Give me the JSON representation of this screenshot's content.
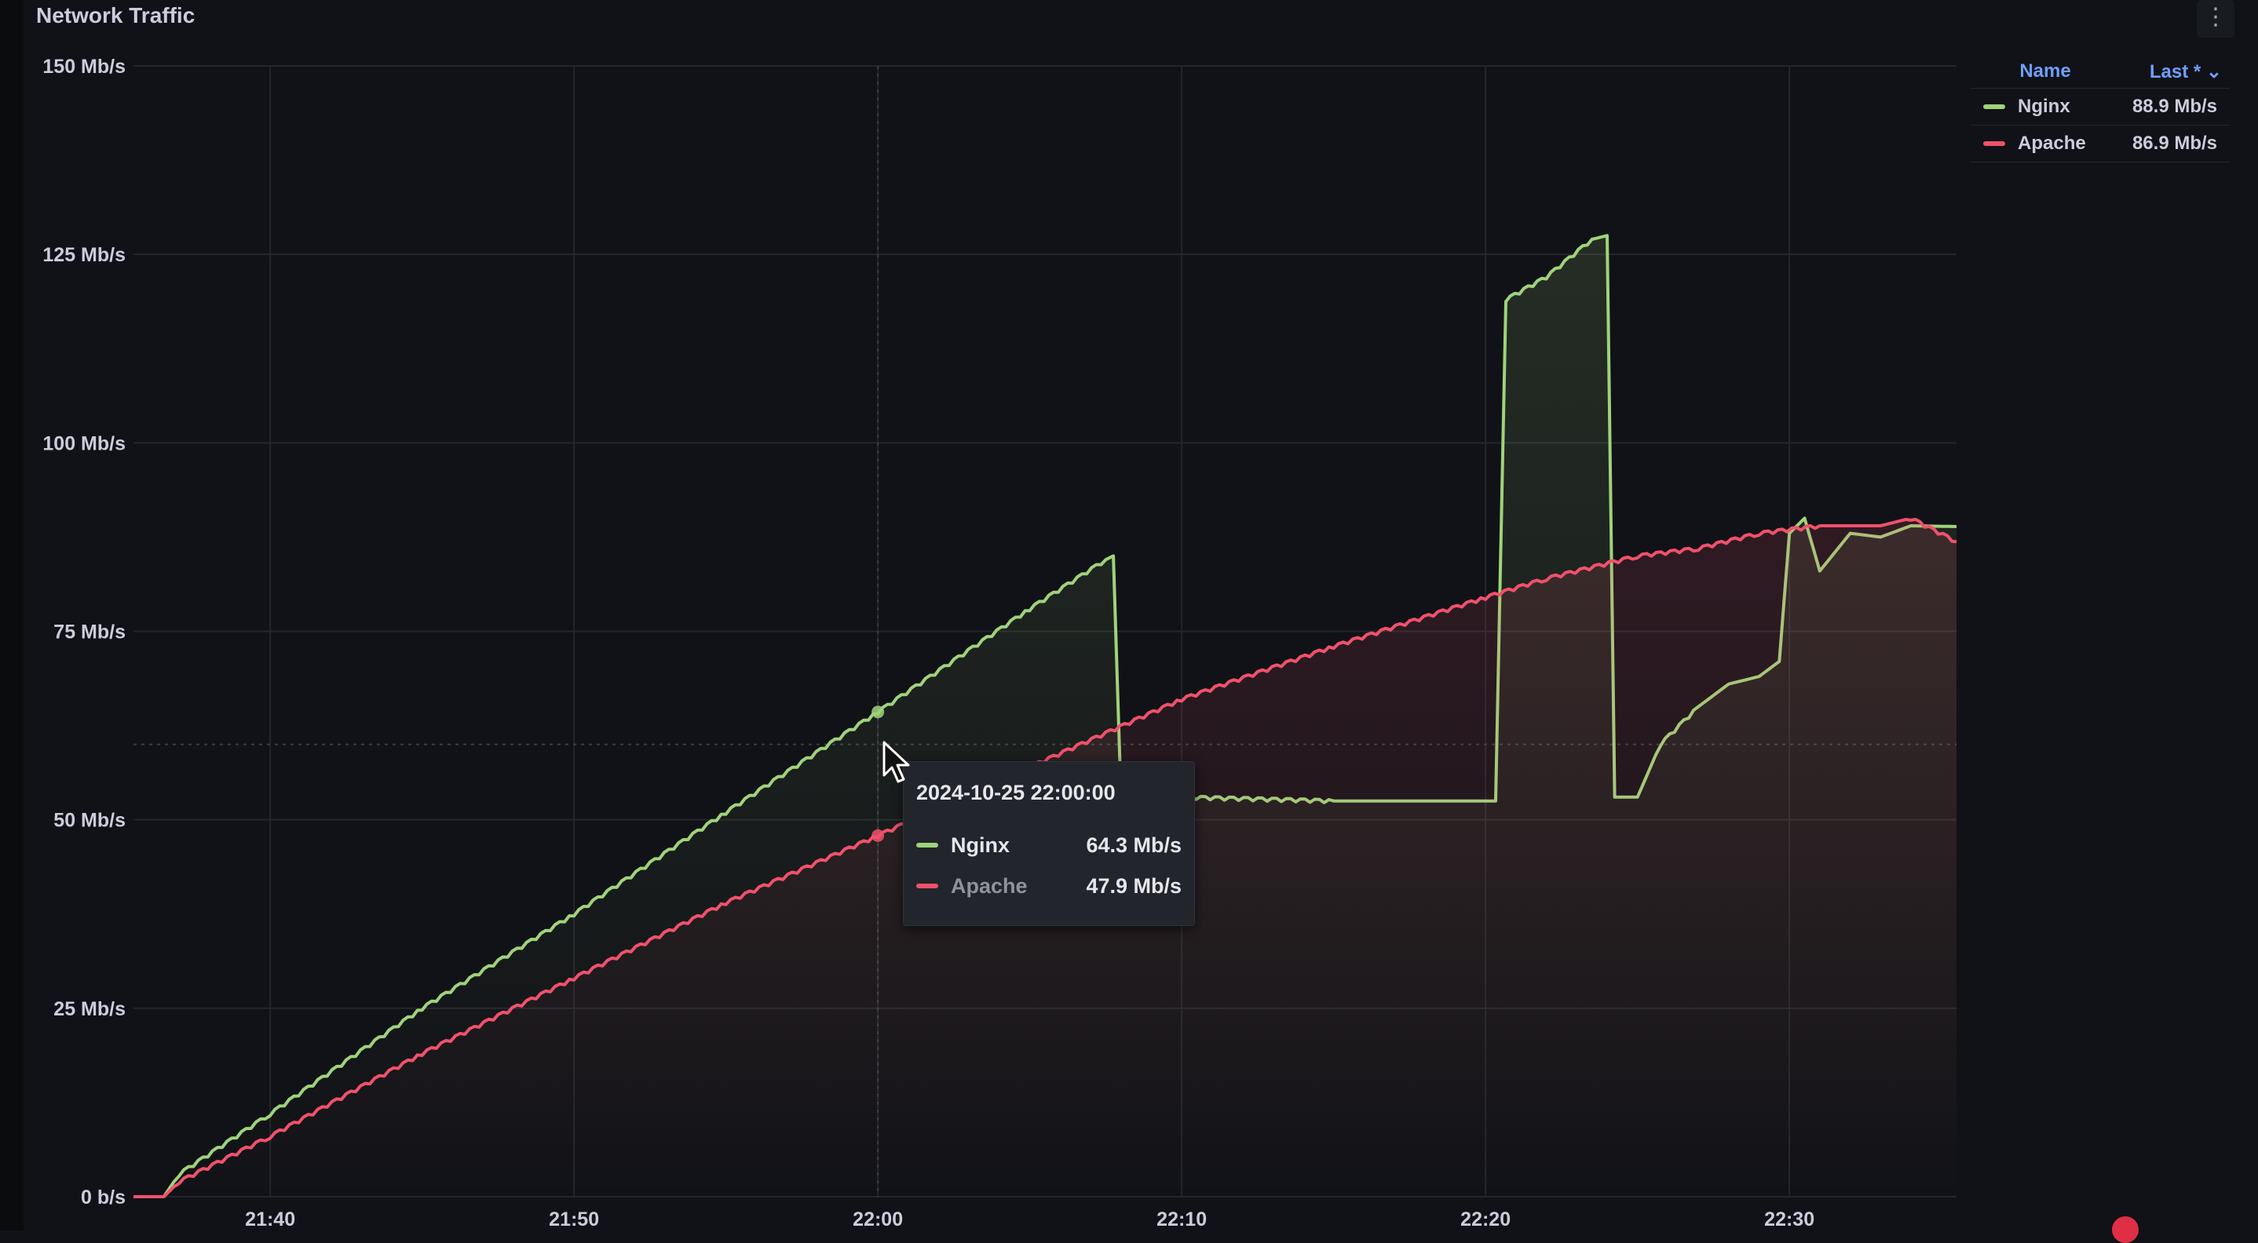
{
  "panel": {
    "title": "Network Traffic",
    "menu_icon": "vertical-ellipsis-icon"
  },
  "legend": {
    "name_header": "Name",
    "last_header": "Last * ⌄",
    "items": [
      {
        "name": "Nginx",
        "last": "88.9 Mb/s",
        "color": "#9fd37a"
      },
      {
        "name": "Apache",
        "last": "86.9 Mb/s",
        "color": "#f0516c"
      }
    ]
  },
  "tooltip": {
    "time": "2024-10-25 22:00:00",
    "rows": [
      {
        "name": "Nginx",
        "value": "64.3 Mb/s",
        "color": "#9fd37a",
        "name_color": "#e6e6ee"
      },
      {
        "name": "Apache",
        "value": "47.9 Mb/s",
        "color": "#f0516c",
        "name_color": "#8e939c"
      }
    ]
  },
  "chart_data": {
    "type": "line",
    "title": "Network Traffic",
    "xlabel": "",
    "ylabel": "",
    "x_ticks": [
      "21:40",
      "21:50",
      "22:00",
      "22:10",
      "22:20",
      "22:30"
    ],
    "y_ticks": [
      "0 b/s",
      "25 Mb/s",
      "50 Mb/s",
      "75 Mb/s",
      "100 Mb/s",
      "125 Mb/s",
      "150 Mb/s"
    ],
    "xlim": [
      "21:35:30",
      "22:35:30"
    ],
    "ylim": [
      0,
      150
    ],
    "y_unit": "Mb/s",
    "grid": true,
    "legend_position": "right",
    "hover_time": "22:00:00",
    "threshold_line": 60,
    "series": [
      {
        "name": "Nginx",
        "color": "#9fd37a",
        "points": [
          [
            "21:35:30",
            0
          ],
          [
            "21:36:30",
            0
          ],
          [
            "21:37:00",
            3
          ],
          [
            "21:40:00",
            11
          ],
          [
            "21:45:00",
            25
          ],
          [
            "21:50:00",
            37.5
          ],
          [
            "21:55:00",
            51
          ],
          [
            "22:00:00",
            64.3
          ],
          [
            "22:05:00",
            78
          ],
          [
            "22:07:30",
            84.5
          ],
          [
            "22:07:45",
            85
          ],
          [
            "22:08:00",
            53
          ],
          [
            "22:10:00",
            53
          ],
          [
            "22:15:00",
            52.5
          ],
          [
            "22:20:00",
            52.5
          ],
          [
            "22:20:20",
            52.5
          ],
          [
            "22:20:40",
            119
          ],
          [
            "22:22:00",
            122
          ],
          [
            "22:23:30",
            127
          ],
          [
            "22:24:00",
            127.5
          ],
          [
            "22:24:15",
            53
          ],
          [
            "22:25:00",
            53
          ],
          [
            "22:25:45",
            60
          ],
          [
            "22:27:00",
            65
          ],
          [
            "22:28:00",
            68
          ],
          [
            "22:29:00",
            69
          ],
          [
            "22:29:40",
            71
          ],
          [
            "22:30:00",
            88
          ],
          [
            "22:30:30",
            90
          ],
          [
            "22:31:00",
            83
          ],
          [
            "22:32:00",
            88
          ],
          [
            "22:33:00",
            87.5
          ],
          [
            "22:34:00",
            89
          ],
          [
            "22:35:30",
            88.9
          ]
        ]
      },
      {
        "name": "Apache",
        "color": "#f0516c",
        "points": [
          [
            "21:35:30",
            0
          ],
          [
            "21:36:30",
            0
          ],
          [
            "21:37:00",
            2
          ],
          [
            "21:40:00",
            8
          ],
          [
            "21:45:00",
            19
          ],
          [
            "21:50:00",
            29
          ],
          [
            "21:55:00",
            39
          ],
          [
            "22:00:00",
            47.9
          ],
          [
            "22:05:00",
            57
          ],
          [
            "22:10:00",
            66
          ],
          [
            "22:15:00",
            73
          ],
          [
            "22:20:00",
            79.5
          ],
          [
            "22:22:00",
            82
          ],
          [
            "22:25:00",
            85
          ],
          [
            "22:27:00",
            86
          ],
          [
            "22:29:00",
            88
          ],
          [
            "22:31:00",
            89
          ],
          [
            "22:33:00",
            89
          ],
          [
            "22:34:00",
            90
          ],
          [
            "22:35:30",
            86.9
          ]
        ]
      }
    ]
  }
}
